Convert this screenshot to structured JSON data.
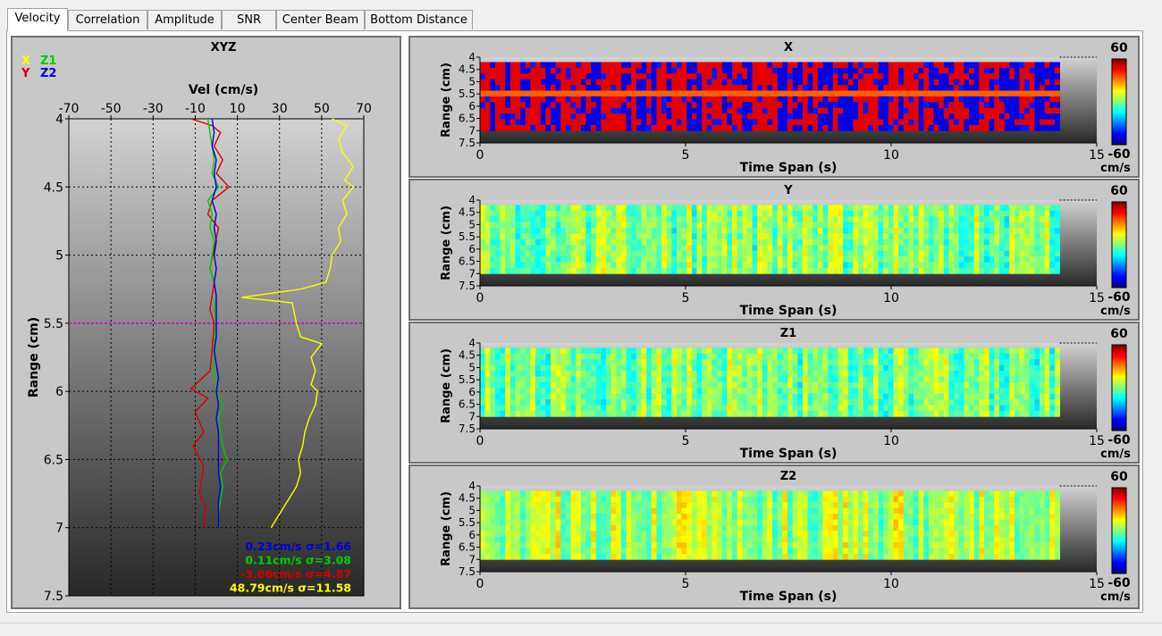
{
  "tabs": [
    "Velocity",
    "Correlation",
    "Amplitude",
    "SNR",
    "Center Beam",
    "Bottom Distance"
  ],
  "active_tab": "Velocity",
  "colors": {
    "X": "#ffff00",
    "Y": "#d40000",
    "Z1": "#00cc00",
    "Z2": "#0000dd",
    "cursor": "#cc00cc"
  },
  "profile": {
    "title": "XYZ",
    "legend": [
      {
        "name": "X",
        "color": "#ffff00"
      },
      {
        "name": "Z1",
        "color": "#00cc00"
      },
      {
        "name": "Y",
        "color": "#d40000"
      },
      {
        "name": "Z2",
        "color": "#0000dd"
      }
    ],
    "stats": [
      {
        "text": "0.23cm/s σ=1.66",
        "color": "#0000dd"
      },
      {
        "text": "0.11cm/s σ=3.08",
        "color": "#00cc00"
      },
      {
        "text": "-3.06cm/s σ=4.87",
        "color": "#d40000"
      },
      {
        "text": "48.79cm/s σ=11.58",
        "color": "#ffff00"
      }
    ]
  },
  "heatmaps": [
    {
      "title": "X",
      "style": "hot"
    },
    {
      "title": "Y",
      "style": "cool"
    },
    {
      "title": "Z1",
      "style": "cool"
    },
    {
      "title": "Z2",
      "style": "cool2"
    }
  ],
  "colorbar": {
    "max": "60",
    "min": "-60",
    "unit": "cm/s"
  },
  "chart_data": [
    {
      "type": "line",
      "title": "XYZ",
      "xlabel": "Vel (cm/s)",
      "ylabel": "Range (cm)",
      "xlim": [
        -70,
        70
      ],
      "ylim": [
        4,
        7.5
      ],
      "x_ticks": [
        "-70",
        "-50",
        "-30",
        "-10",
        "10",
        "30",
        "50",
        "70"
      ],
      "y_ticks": [
        "4",
        "4.5",
        "5",
        "5.5",
        "6",
        "6.5",
        "7",
        "7.5"
      ],
      "cursor_range": 5.5,
      "series": [
        {
          "name": "X",
          "color": "#ffff00",
          "points": [
            [
              55,
              4.0
            ],
            [
              62,
              4.05
            ],
            [
              58,
              4.15
            ],
            [
              60,
              4.25
            ],
            [
              65,
              4.35
            ],
            [
              61,
              4.45
            ],
            [
              65,
              4.5
            ],
            [
              60,
              4.6
            ],
            [
              62,
              4.7
            ],
            [
              58,
              4.8
            ],
            [
              59,
              4.9
            ],
            [
              55,
              5.0
            ],
            [
              54,
              5.1
            ],
            [
              52,
              5.2
            ],
            [
              40,
              5.25
            ],
            [
              12,
              5.31
            ],
            [
              36,
              5.35
            ],
            [
              38,
              5.5
            ],
            [
              40,
              5.6
            ],
            [
              50,
              5.65
            ],
            [
              45,
              5.75
            ],
            [
              47,
              5.85
            ],
            [
              45,
              5.95
            ],
            [
              48,
              6.0
            ],
            [
              47,
              6.1
            ],
            [
              44,
              6.2
            ],
            [
              42,
              6.3
            ],
            [
              41,
              6.4
            ],
            [
              39,
              6.5
            ],
            [
              40,
              6.6
            ],
            [
              38,
              6.7
            ],
            [
              34,
              6.8
            ],
            [
              30,
              6.9
            ],
            [
              26,
              7.0
            ]
          ]
        },
        {
          "name": "Y",
          "color": "#d40000",
          "points": [
            [
              -12,
              4.0
            ],
            [
              -2,
              4.05
            ],
            [
              2,
              4.1
            ],
            [
              -1,
              4.2
            ],
            [
              3,
              4.3
            ],
            [
              0,
              4.4
            ],
            [
              6,
              4.5
            ],
            [
              -2,
              4.6
            ],
            [
              -4,
              4.7
            ],
            [
              1,
              4.8
            ],
            [
              -1,
              4.95
            ],
            [
              -3,
              5.1
            ],
            [
              -1,
              5.2
            ],
            [
              -2,
              5.3
            ],
            [
              -3,
              5.4
            ],
            [
              -1,
              5.5
            ],
            [
              -2,
              5.7
            ],
            [
              -3,
              5.85
            ],
            [
              -12,
              5.98
            ],
            [
              -4,
              6.05
            ],
            [
              -10,
              6.15
            ],
            [
              -6,
              6.3
            ],
            [
              -11,
              6.4
            ],
            [
              -6,
              6.55
            ],
            [
              -7,
              6.65
            ],
            [
              -8,
              6.75
            ],
            [
              -5,
              6.85
            ],
            [
              -6,
              7.0
            ]
          ]
        },
        {
          "name": "Z1",
          "color": "#00cc00",
          "points": [
            [
              -4,
              4.0
            ],
            [
              -3,
              4.1
            ],
            [
              -2,
              4.2
            ],
            [
              -1,
              4.3
            ],
            [
              -2,
              4.4
            ],
            [
              1,
              4.5
            ],
            [
              -4,
              4.6
            ],
            [
              -2,
              4.7
            ],
            [
              -3,
              4.8
            ],
            [
              -1,
              4.9
            ],
            [
              -2,
              5.0
            ],
            [
              -3,
              5.1
            ],
            [
              -1,
              5.2
            ],
            [
              0,
              5.3
            ],
            [
              -1,
              5.4
            ],
            [
              0,
              5.5
            ],
            [
              -1,
              5.6
            ],
            [
              0,
              5.7
            ],
            [
              -2,
              5.8
            ],
            [
              0,
              5.9
            ],
            [
              0,
              6.0
            ],
            [
              3,
              6.1
            ],
            [
              1,
              6.2
            ],
            [
              2,
              6.3
            ],
            [
              3,
              6.4
            ],
            [
              5,
              6.5
            ],
            [
              2,
              6.6
            ],
            [
              3,
              6.7
            ],
            [
              2,
              6.8
            ],
            [
              1,
              6.9
            ],
            [
              1,
              7.0
            ]
          ]
        },
        {
          "name": "Z2",
          "color": "#0000dd",
          "points": [
            [
              -2,
              4.0
            ],
            [
              -1,
              4.1
            ],
            [
              -2,
              4.2
            ],
            [
              0,
              4.3
            ],
            [
              -1,
              4.4
            ],
            [
              0,
              4.5
            ],
            [
              -2,
              4.6
            ],
            [
              0,
              4.7
            ],
            [
              -1,
              4.8
            ],
            [
              0,
              4.9
            ],
            [
              -1,
              5.0
            ],
            [
              0,
              5.1
            ],
            [
              -1,
              5.2
            ],
            [
              0,
              5.3
            ],
            [
              0,
              5.4
            ],
            [
              0,
              5.5
            ],
            [
              0,
              5.6
            ],
            [
              -1,
              5.7
            ],
            [
              0,
              5.8
            ],
            [
              1,
              5.9
            ],
            [
              0,
              6.0
            ],
            [
              1,
              6.1
            ],
            [
              0,
              6.2
            ],
            [
              1,
              6.3
            ],
            [
              1,
              6.4
            ],
            [
              1,
              6.5
            ],
            [
              1,
              6.6
            ],
            [
              2,
              6.7
            ],
            [
              1,
              6.8
            ],
            [
              1,
              6.9
            ],
            [
              1,
              7.0
            ]
          ]
        }
      ]
    },
    {
      "type": "heatmap",
      "titles": [
        "X",
        "Y",
        "Z1",
        "Z2"
      ],
      "xlabel": "Time Span (s)",
      "ylabel": "Range (cm)",
      "xlim": [
        0,
        15
      ],
      "ylim": [
        4,
        7.5
      ],
      "x_ticks": [
        "0",
        "5",
        "10",
        "15"
      ],
      "y_ticks": [
        "4",
        "4.5",
        "5",
        "5.5",
        "6",
        "6.5",
        "7",
        "7.5"
      ],
      "data_x_range": [
        0,
        14.1
      ],
      "data_y_range": [
        4.2,
        7.0
      ],
      "color_range": [
        -60,
        60
      ],
      "colorbar_unit": "cm/s"
    }
  ]
}
